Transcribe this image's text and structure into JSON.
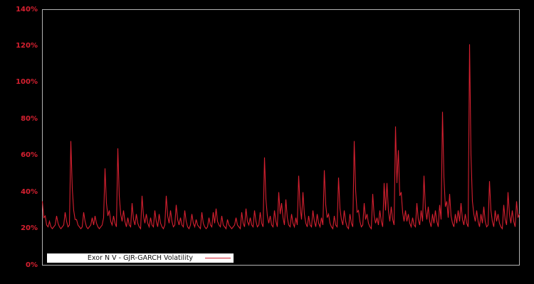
{
  "figure": {
    "background_color": "#000000",
    "plot_border_color": "#b3b3b3",
    "accent_color": "#d62030",
    "tick_label_color": "#d62030",
    "legend_background_color": "#ffffff",
    "legend_text_color": "#111111"
  },
  "legend": {
    "label": "Exor N V - GJR-GARCH Volatility"
  },
  "chart_data": {
    "type": "line",
    "title": "",
    "xlabel": "",
    "ylabel": "",
    "ylim": [
      0,
      140
    ],
    "yticks": [
      0,
      20,
      40,
      60,
      80,
      100,
      120,
      140
    ],
    "ytick_labels": [
      "0%",
      "20%",
      "40%",
      "60%",
      "80%",
      "100%",
      "120%",
      "140%"
    ],
    "xticks_visible": false,
    "grid": false,
    "legend_position": "bottom-left-inside",
    "description": "GJR-GARCH conditional volatility (%), baseline near 20% with spikes; maximum spike ~121%",
    "series": [
      {
        "name": "Exor N V - GJR-GARCH Volatility",
        "color": "#d62030",
        "values": [
          35,
          26,
          27,
          22,
          21,
          24,
          21,
          20,
          21,
          22,
          27,
          23,
          21,
          20,
          21,
          22,
          29,
          24,
          21,
          22,
          68,
          42,
          30,
          25,
          25,
          22,
          21,
          20,
          21,
          29,
          24,
          21,
          20,
          21,
          22,
          26,
          22,
          27,
          23,
          21,
          20,
          21,
          22,
          26,
          53,
          34,
          27,
          30,
          24,
          22,
          27,
          23,
          21,
          64,
          38,
          28,
          24,
          30,
          24,
          21,
          26,
          22,
          21,
          34,
          25,
          22,
          28,
          23,
          21,
          20,
          38,
          27,
          23,
          28,
          23,
          21,
          26,
          22,
          21,
          30,
          24,
          21,
          28,
          23,
          21,
          20,
          22,
          38,
          27,
          23,
          30,
          24,
          21,
          22,
          33,
          25,
          22,
          26,
          22,
          21,
          30,
          24,
          21,
          20,
          22,
          28,
          23,
          21,
          25,
          22,
          21,
          20,
          29,
          23,
          21,
          20,
          21,
          26,
          22,
          21,
          29,
          23,
          31,
          24,
          22,
          21,
          27,
          22,
          21,
          20,
          25,
          22,
          21,
          20,
          21,
          22,
          26,
          22,
          21,
          20,
          29,
          23,
          21,
          31,
          24,
          22,
          26,
          22,
          21,
          30,
          24,
          21,
          22,
          29,
          23,
          21,
          59,
          36,
          27,
          23,
          27,
          22,
          21,
          30,
          24,
          21,
          40,
          28,
          34,
          26,
          22,
          36,
          26,
          22,
          21,
          28,
          23,
          21,
          26,
          22,
          49,
          32,
          25,
          40,
          28,
          23,
          21,
          27,
          22,
          21,
          30,
          24,
          21,
          28,
          23,
          21,
          26,
          22,
          52,
          33,
          26,
          28,
          23,
          21,
          20,
          27,
          22,
          21,
          48,
          31,
          25,
          22,
          30,
          24,
          21,
          20,
          28,
          23,
          21,
          68,
          41,
          29,
          30,
          24,
          21,
          22,
          34,
          25,
          28,
          23,
          21,
          20,
          39,
          27,
          23,
          26,
          22,
          30,
          24,
          21,
          45,
          30,
          45,
          30,
          24,
          32,
          25,
          22,
          76,
          45,
          63,
          38,
          40,
          29,
          24,
          30,
          24,
          28,
          23,
          21,
          26,
          22,
          21,
          34,
          25,
          22,
          30,
          24,
          49,
          31,
          25,
          32,
          24,
          21,
          28,
          23,
          30,
          24,
          21,
          33,
          25,
          84,
          48,
          32,
          35,
          26,
          39,
          27,
          23,
          21,
          28,
          23,
          30,
          24,
          34,
          25,
          22,
          28,
          23,
          21,
          121,
          60,
          35,
          28,
          24,
          30,
          24,
          21,
          28,
          23,
          32,
          24,
          21,
          22,
          46,
          30,
          24,
          21,
          30,
          24,
          28,
          23,
          21,
          20,
          33,
          25,
          22,
          40,
          28,
          23,
          30,
          24,
          21,
          35,
          26,
          28
        ]
      }
    ]
  }
}
